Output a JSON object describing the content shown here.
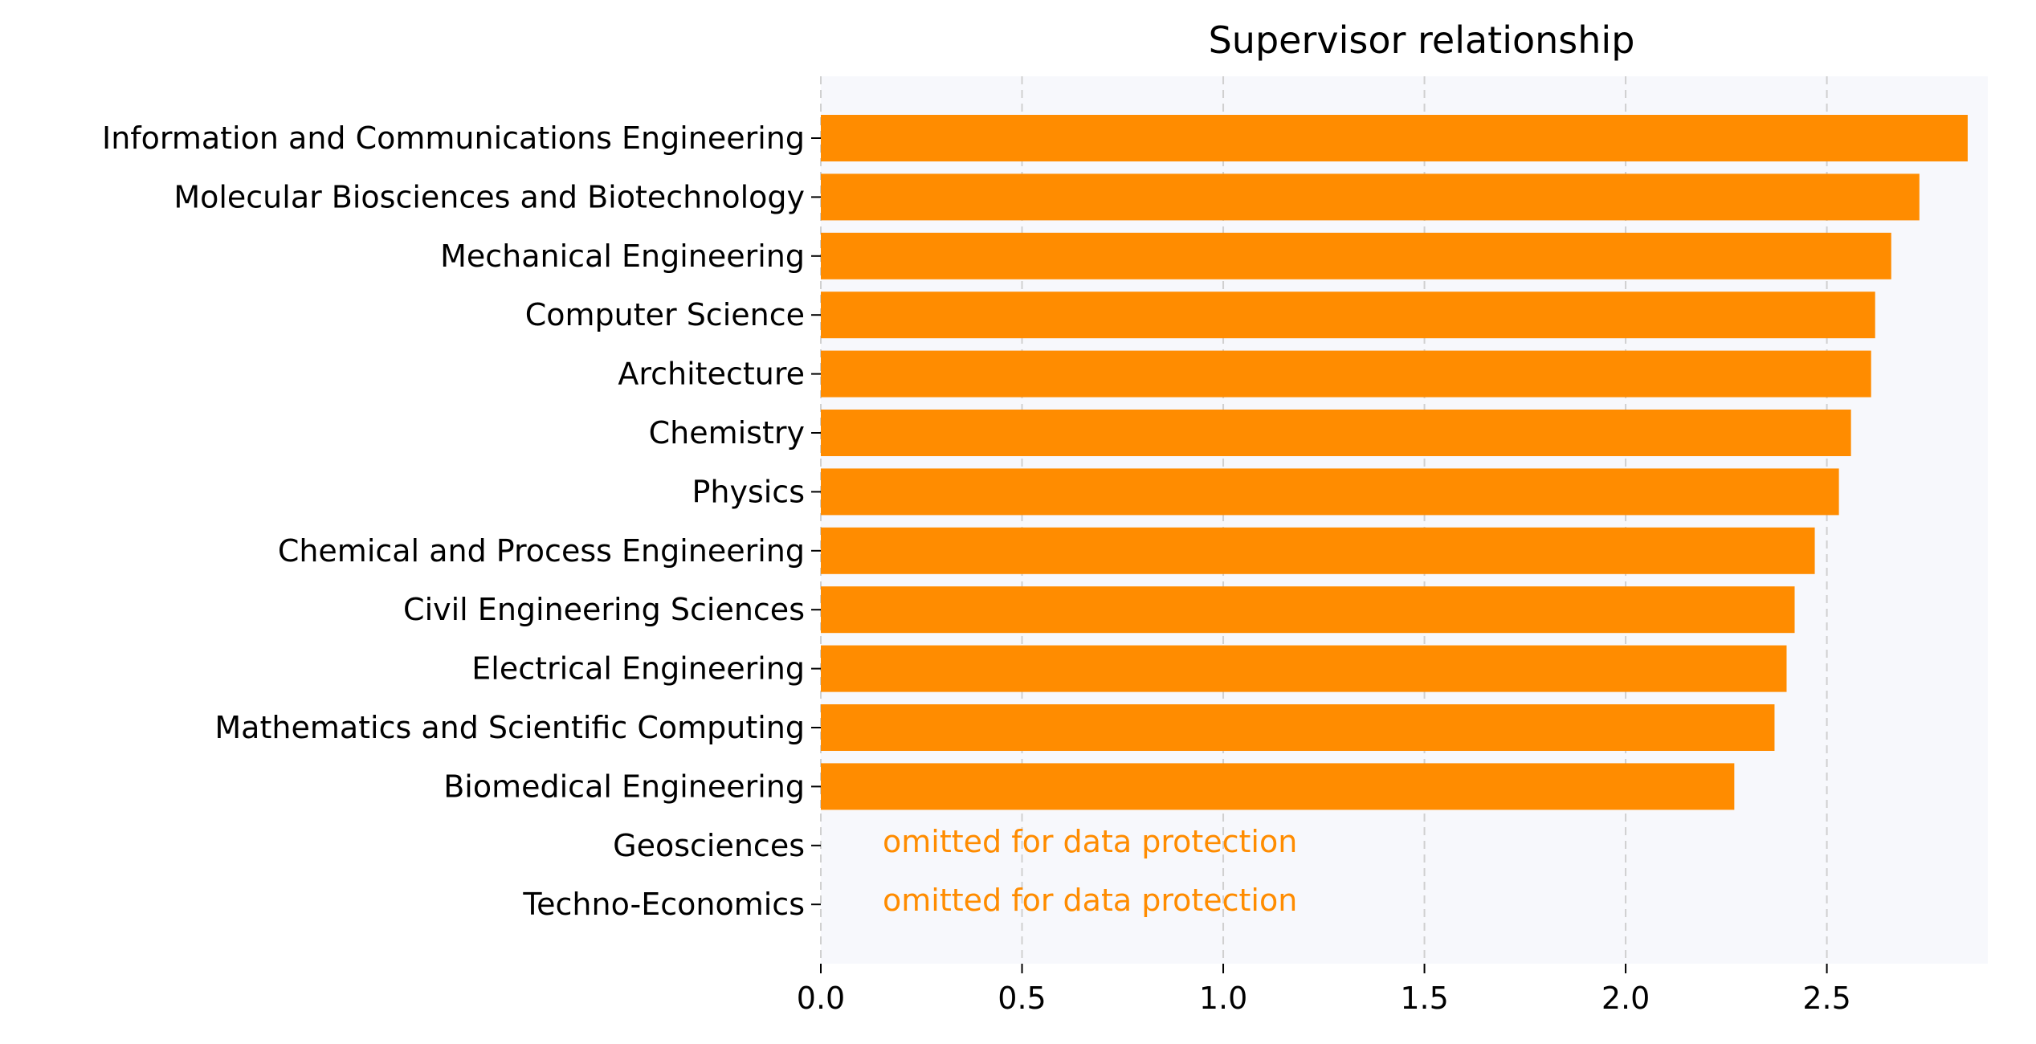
{
  "chart_data": {
    "type": "bar",
    "orientation": "horizontal",
    "title": "Supervisor relationship",
    "xlabel": "",
    "ylabel": "",
    "categories": [
      "Information and Communications Engineering",
      "Molecular Biosciences and Biotechnology",
      "Mechanical Engineering",
      "Computer Science",
      "Architecture",
      "Chemistry",
      "Physics",
      "Chemical and Process Engineering",
      "Civil Engineering Sciences",
      "Electrical Engineering",
      "Mathematics and Scientific Computing",
      "Biomedical Engineering",
      "Geosciences",
      "Techno-Economics"
    ],
    "values": [
      2.85,
      2.73,
      2.66,
      2.62,
      2.61,
      2.56,
      2.53,
      2.47,
      2.42,
      2.4,
      2.37,
      2.27,
      null,
      null
    ],
    "omitted_note": "omitted for data protection",
    "xlim": [
      0,
      2.9
    ],
    "xticks": [
      0.0,
      0.5,
      1.0,
      1.5,
      2.0,
      2.5
    ],
    "xtick_labels": [
      "0.0",
      "0.5",
      "1.0",
      "1.5",
      "2.0",
      "2.5"
    ],
    "grid": "vertical dashed",
    "colors": {
      "bar": "#FF8C00",
      "note": "#FF8C00",
      "plot_background": "#F7F8FC",
      "grid": "#D0D0D0"
    }
  }
}
